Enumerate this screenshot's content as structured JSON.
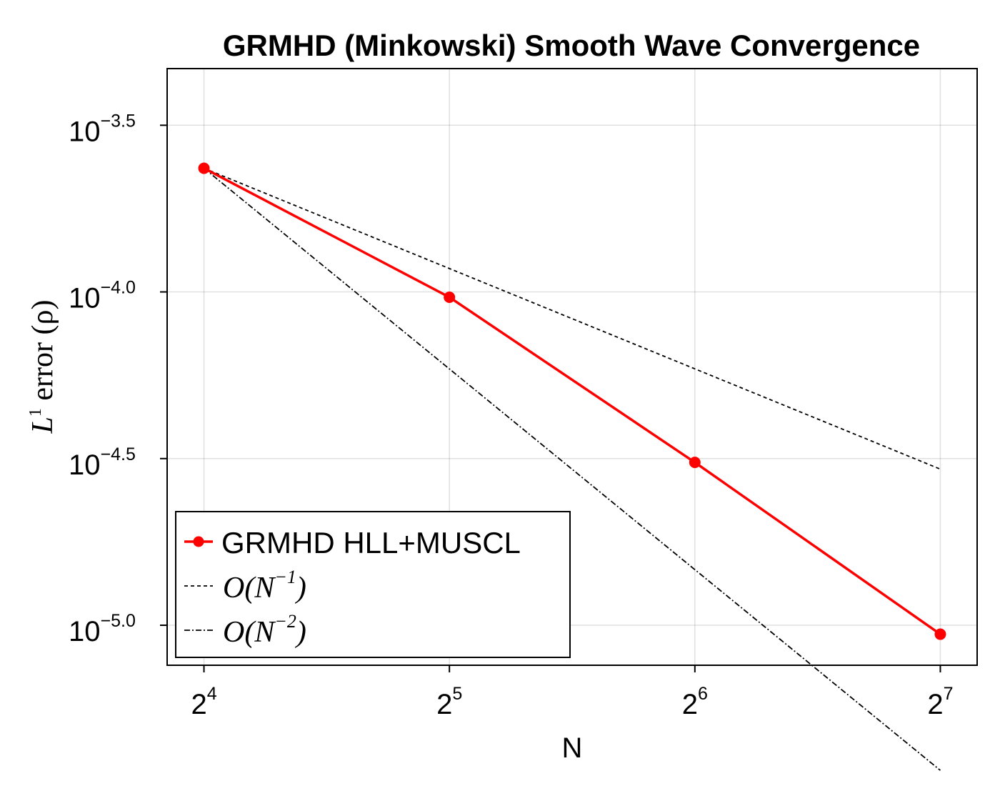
{
  "chart_data": {
    "type": "line",
    "title": "GRMHD (Minkowski) Smooth Wave Convergence",
    "xlabel": "N",
    "ylabel": "L^1 error (ρ)",
    "ylabel_parts": {
      "symbol": "L",
      "sup": "1",
      "rest": " error (ρ)"
    },
    "x_scale": "log2",
    "y_scale": "log10",
    "xlim_exp": [
      3.85,
      7.15
    ],
    "ylim_exp": [
      -5.12,
      -3.33
    ],
    "x_ticks": [
      {
        "value": 16,
        "base": "2",
        "exp": "4"
      },
      {
        "value": 32,
        "base": "2",
        "exp": "5"
      },
      {
        "value": 64,
        "base": "2",
        "exp": "6"
      },
      {
        "value": 128,
        "base": "2",
        "exp": "7"
      }
    ],
    "y_ticks": [
      {
        "value_exp": -3.5,
        "base": "10",
        "exp": "−3.5"
      },
      {
        "value_exp": -4.0,
        "base": "10",
        "exp": "−4.0"
      },
      {
        "value_exp": -4.5,
        "base": "10",
        "exp": "−4.5"
      },
      {
        "value_exp": -5.0,
        "base": "10",
        "exp": "−5.0"
      }
    ],
    "grid": true,
    "legend_position": "bottom-left",
    "series": [
      {
        "name": "GRMHD HLL+MUSCL",
        "style": "solid-markers",
        "color": "#ff0000",
        "x": [
          16,
          32,
          64,
          128
        ],
        "y": [
          0.000235,
          9.64e-05,
          3.08e-05,
          9.4e-06
        ]
      },
      {
        "name": "O(N^{-1})",
        "label_base": "O(N",
        "label_exp": "−1",
        "label_close": ")",
        "style": "dashed",
        "color": "#000000",
        "x": [
          16,
          128
        ],
        "y": [
          0.000235,
          2.94e-05
        ]
      },
      {
        "name": "O(N^{-2})",
        "label_base": "O(N",
        "label_exp": "−2",
        "label_close": ")",
        "style": "dashdot",
        "color": "#000000",
        "x": [
          16,
          128
        ],
        "y": [
          0.000235,
          3.67e-06
        ]
      }
    ]
  }
}
